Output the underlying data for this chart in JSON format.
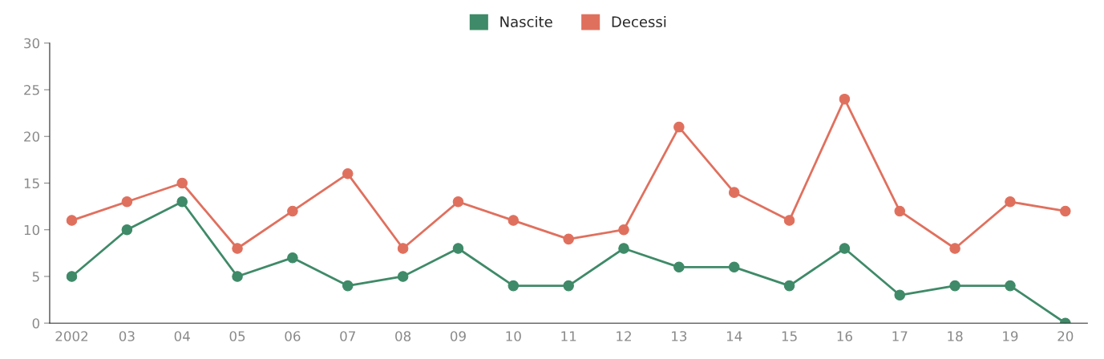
{
  "chart_data": {
    "type": "line",
    "categories": [
      "2002",
      "03",
      "04",
      "05",
      "06",
      "07",
      "08",
      "09",
      "10",
      "11",
      "12",
      "13",
      "14",
      "15",
      "16",
      "17",
      "18",
      "19",
      "20"
    ],
    "series": [
      {
        "name": "Nascite",
        "color": "#3f8a68",
        "values": [
          5,
          10,
          13,
          5,
          7,
          4,
          5,
          8,
          4,
          4,
          8,
          6,
          6,
          4,
          8,
          3,
          4,
          4,
          0
        ]
      },
      {
        "name": "Decessi",
        "color": "#e0705e",
        "values": [
          11,
          13,
          15,
          8,
          12,
          16,
          8,
          13,
          11,
          9,
          10,
          21,
          14,
          11,
          24,
          12,
          8,
          13,
          12
        ]
      }
    ],
    "ylim": [
      0,
      30
    ],
    "yticks": [
      0,
      5,
      10,
      15,
      20,
      25,
      30
    ],
    "legend": "top",
    "marker": "circle",
    "line_style": "solid",
    "grid": false
  }
}
